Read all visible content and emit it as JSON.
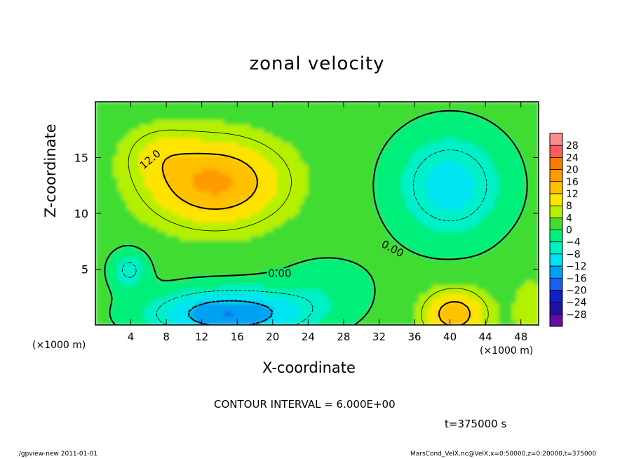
{
  "title": "zonal velocity",
  "footer": {
    "left": "./gpview-new  2011-01-01",
    "right": "MarsCond_VelX.nc@VelX,x=0:50000,z=0:20000,t=375000"
  },
  "annotations": {
    "contour_interval": "CONTOUR INTERVAL = 6.000E+00",
    "time": "t=375000 s",
    "x_unit_left": "(×1000 m)",
    "x_unit_right": "(×1000 m)"
  },
  "chart_data": {
    "type": "heatmap",
    "title": "zonal velocity",
    "xlabel": "X-coordinate",
    "ylabel": "Z-coordinate",
    "xlim": [
      0,
      50
    ],
    "ylim": [
      0,
      20
    ],
    "x_ticks": [
      4,
      8,
      12,
      16,
      20,
      24,
      28,
      32,
      36,
      40,
      44,
      48
    ],
    "y_ticks": [
      5,
      10,
      15
    ],
    "grid": false,
    "contour_interval": 6.0,
    "contour_labels": [
      {
        "text": "12.0",
        "x": 6.2,
        "z": 14.8,
        "angle": -40
      },
      {
        "text": "0.00",
        "x": 20.8,
        "z": 4.6,
        "angle": 0
      },
      {
        "text": "0.00",
        "x": 33.5,
        "z": 6.8,
        "angle": 28
      }
    ],
    "colorbar": {
      "labels": [
        "28",
        "24",
        "20",
        "16",
        "12",
        "8",
        "4",
        "0",
        "−4",
        "−8",
        "−12",
        "−16",
        "−20",
        "−24",
        "−28"
      ],
      "values": [
        28,
        24,
        20,
        16,
        12,
        8,
        4,
        0,
        -4,
        -8,
        -12,
        -16,
        -20,
        -24,
        -28
      ],
      "colors": [
        "#ff8c8c",
        "#ff5a5a",
        "#ff7a00",
        "#ff9a00",
        "#ffc000",
        "#ffe400",
        "#b4f000",
        "#40dc30",
        "#00ee7a",
        "#00f0c8",
        "#00e4f4",
        "#00a0f0",
        "#1860f0",
        "#1020c8",
        "#2410a0",
        "#6010a0"
      ]
    },
    "features": [
      {
        "name": "positive jet",
        "center": [
          13.5,
          12.8
        ],
        "peak": 17
      },
      {
        "name": "upper-right negative region",
        "center": [
          40,
          12.5
        ],
        "peak": -10
      },
      {
        "name": "lower negative region",
        "center": [
          15,
          1.2
        ],
        "peak": -17
      },
      {
        "name": "lower-left negative cell",
        "center": [
          3.8,
          5.2
        ],
        "peak": -8
      },
      {
        "name": "lower-right positive cell",
        "center": [
          40.5,
          1.2
        ],
        "peak": 14
      }
    ]
  }
}
